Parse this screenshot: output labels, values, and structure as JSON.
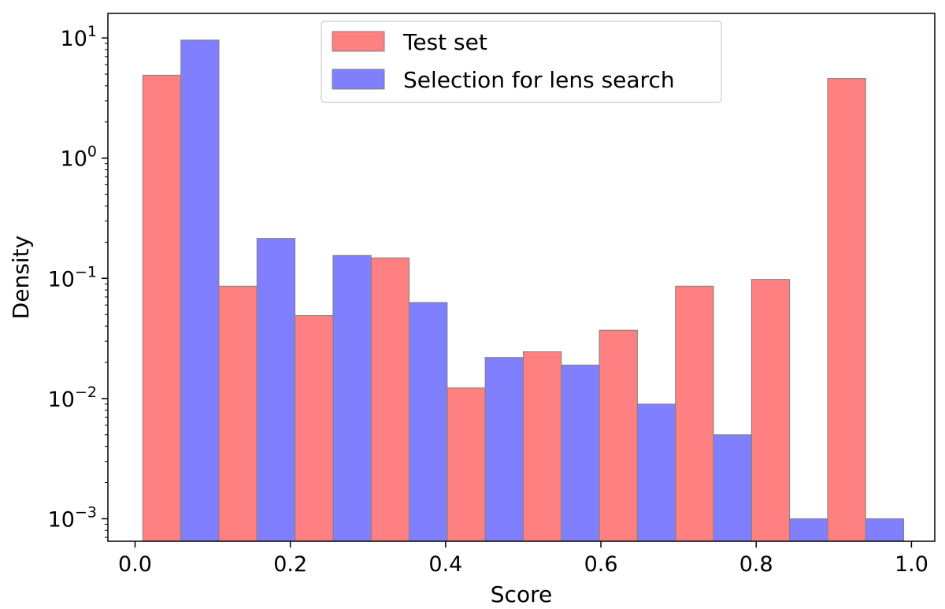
{
  "chart_data": {
    "type": "bar",
    "title": "",
    "xlabel": "Score",
    "ylabel": "Density",
    "yscale": "log",
    "ylim": [
      0.00065,
      16
    ],
    "xlim": [
      -0.035,
      1.03
    ],
    "bin_edges": [
      0.01,
      0.108,
      0.206,
      0.304,
      0.402,
      0.5,
      0.598,
      0.696,
      0.794,
      0.892,
      0.99
    ],
    "x_ticks": [
      {
        "value": 0.0,
        "label": "0.0"
      },
      {
        "value": 0.2,
        "label": "0.2"
      },
      {
        "value": 0.4,
        "label": "0.4"
      },
      {
        "value": 0.6,
        "label": "0.6"
      },
      {
        "value": 0.8,
        "label": "0.8"
      },
      {
        "value": 1.0,
        "label": "1.0"
      }
    ],
    "y_ticks": [
      {
        "value": 0.001,
        "base": "10",
        "exp": "−3"
      },
      {
        "value": 0.01,
        "base": "10",
        "exp": "−2"
      },
      {
        "value": 0.1,
        "base": "10",
        "exp": "−1"
      },
      {
        "value": 1,
        "base": "10",
        "exp": "0"
      },
      {
        "value": 10,
        "base": "10",
        "exp": "1"
      }
    ],
    "grid": false,
    "legend_position": "top-center",
    "series": [
      {
        "name": "Test set",
        "color": "#ff8080",
        "values": [
          4.9,
          0.086,
          0.049,
          0.148,
          0.0123,
          0.0245,
          0.037,
          0.086,
          0.098,
          4.6
        ]
      },
      {
        "name": "Selection for lens search",
        "color": "#8080ff",
        "values": [
          9.6,
          0.215,
          0.155,
          0.063,
          0.022,
          0.019,
          0.009,
          0.005,
          0.001,
          0.001
        ]
      }
    ]
  }
}
